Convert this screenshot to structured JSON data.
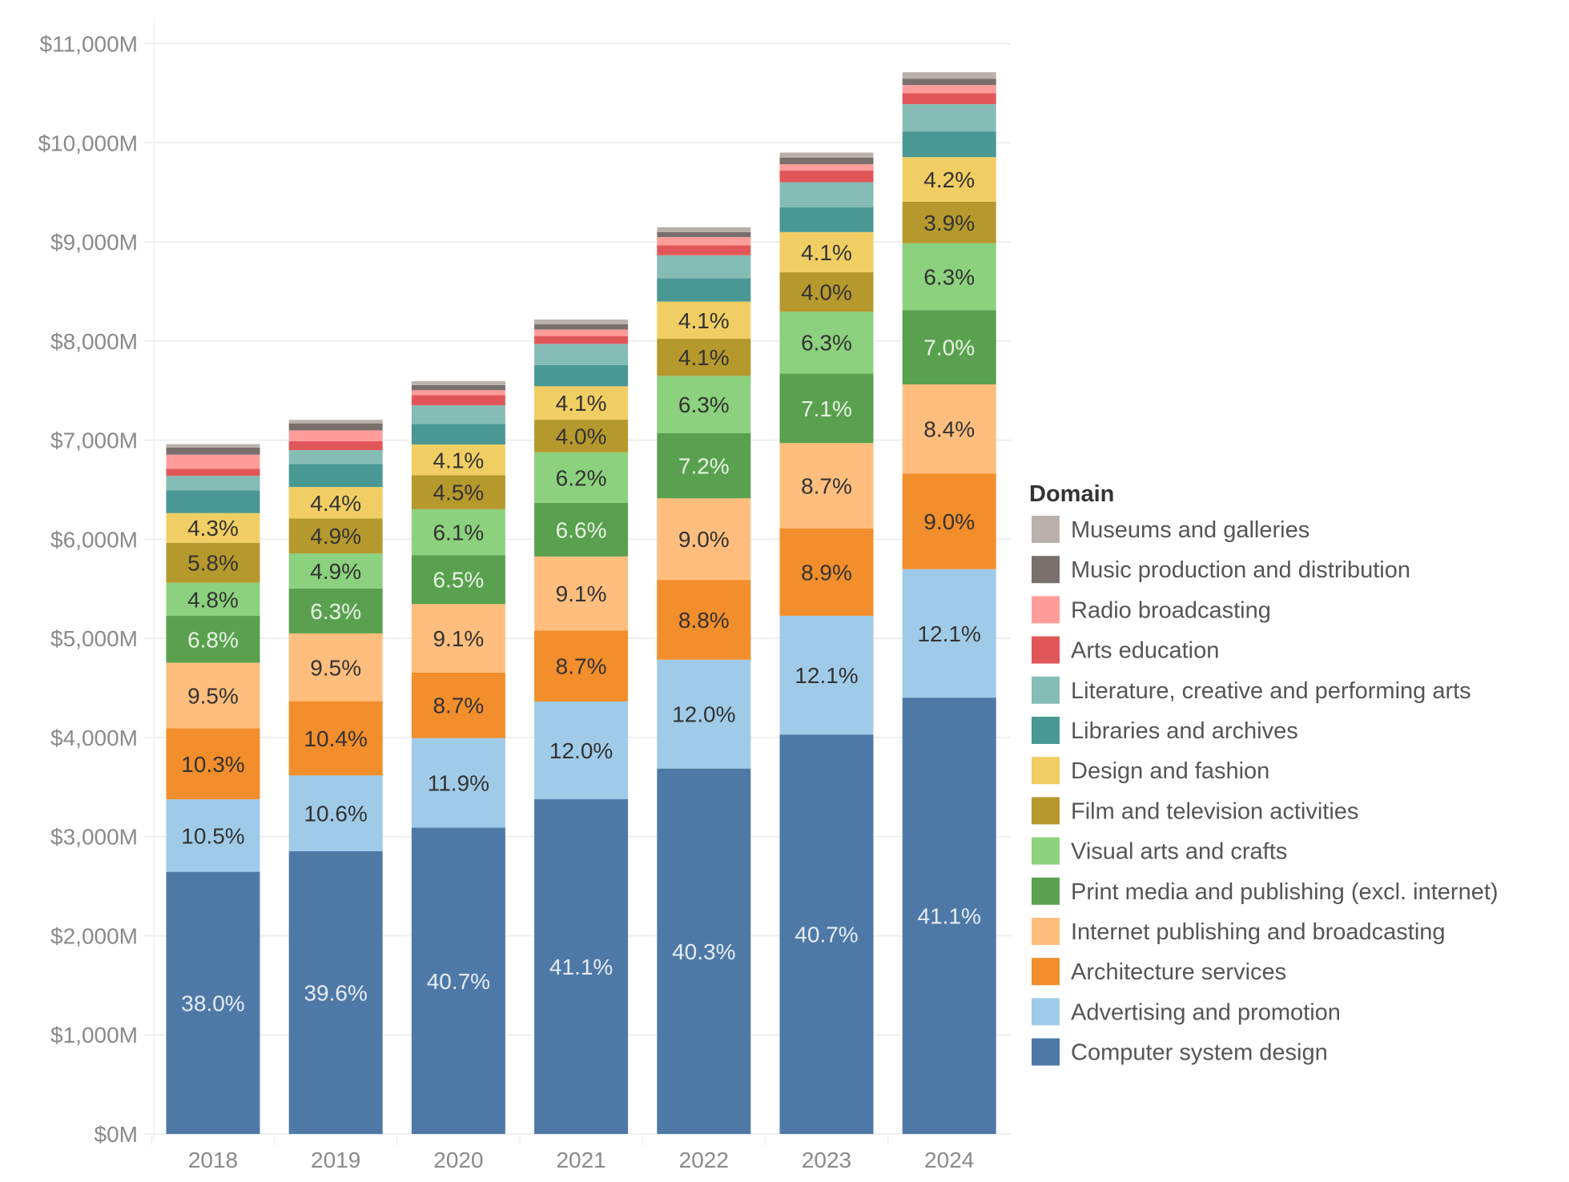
{
  "chart_data": {
    "type": "bar",
    "stacked": true,
    "categories": [
      "2018",
      "2019",
      "2020",
      "2021",
      "2022",
      "2023",
      "2024"
    ],
    "ylim": [
      0,
      11000
    ],
    "yticks": [
      0,
      1000,
      2000,
      3000,
      4000,
      5000,
      6000,
      7000,
      8000,
      9000,
      10000,
      11000
    ],
    "ytick_labels": [
      "$0M",
      "$1,000M",
      "$2,000M",
      "$3,000M",
      "$4,000M",
      "$5,000M",
      "$6,000M",
      "$7,000M",
      "$8,000M",
      "$9,000M",
      "$10,000M",
      "$11,000M"
    ],
    "grid": true,
    "legend": {
      "title": "Domain",
      "placement": "right"
    },
    "series": [
      {
        "name": "Computer system design",
        "color": "#4e79a7",
        "label_color": "#e6ecf5",
        "values": [
          2645,
          2853,
          3090,
          3377,
          3687,
          4030,
          4402
        ],
        "labels": [
          "38.0%",
          "39.6%",
          "40.7%",
          "41.1%",
          "40.3%",
          "40.7%",
          "41.1%"
        ]
      },
      {
        "name": "Advertising and promotion",
        "color": "#a0cbe8",
        "label_color": "#333333",
        "values": [
          731,
          764,
          904,
          986,
          1098,
          1198,
          1296
        ],
        "labels": [
          "10.5%",
          "10.6%",
          "11.9%",
          "12.0%",
          "12.0%",
          "12.1%",
          "12.1%"
        ]
      },
      {
        "name": "Architecture services",
        "color": "#f28e2b",
        "label_color": "#333333",
        "values": [
          717,
          749,
          661,
          715,
          805,
          881,
          964
        ],
        "labels": [
          "10.3%",
          "10.4%",
          "8.7%",
          "8.7%",
          "8.8%",
          "8.9%",
          "9.0%"
        ]
      },
      {
        "name": "Internet publishing and broadcasting",
        "color": "#ffbe7d",
        "label_color": "#333333",
        "values": [
          661,
          684,
          691,
          748,
          823,
          861,
          900
        ],
        "labels": [
          "9.5%",
          "9.5%",
          "9.1%",
          "9.1%",
          "9.0%",
          "8.7%",
          "8.4%"
        ]
      },
      {
        "name": "Print media and publishing (excl. internet)",
        "color": "#59a14f",
        "label_color": "#e8f2e4",
        "values": [
          473,
          454,
          494,
          542,
          659,
          703,
          750
        ],
        "labels": [
          "6.8%",
          "6.3%",
          "6.5%",
          "6.6%",
          "7.2%",
          "7.1%",
          "7.0%"
        ]
      },
      {
        "name": "Visual arts and crafts",
        "color": "#8cd17d",
        "label_color": "#333333",
        "values": [
          334,
          353,
          463,
          509,
          576,
          624,
          675
        ],
        "labels": [
          "4.8%",
          "4.9%",
          "6.1%",
          "6.2%",
          "6.3%",
          "6.3%",
          "6.3%"
        ]
      },
      {
        "name": "Film and television activities",
        "color": "#b6992d",
        "label_color": "#333333",
        "values": [
          404,
          353,
          342,
          329,
          375,
          396,
          418
        ],
        "labels": [
          "5.8%",
          "4.9%",
          "4.5%",
          "4.0%",
          "4.1%",
          "4.0%",
          "3.9%"
        ]
      },
      {
        "name": "Design and fashion",
        "color": "#f1ce63",
        "label_color": "#333333",
        "values": [
          299,
          317,
          311,
          337,
          375,
          406,
          450
        ],
        "labels": [
          "4.3%",
          "4.4%",
          "4.1%",
          "4.1%",
          "4.1%",
          "4.1%",
          "4.2%"
        ]
      },
      {
        "name": "Libraries and archives",
        "color": "#499894",
        "label_color": "#333333",
        "values": [
          230,
          231,
          208,
          214,
          234,
          251,
          259
        ],
        "labels": [
          null,
          null,
          null,
          null,
          null,
          null,
          null
        ]
      },
      {
        "name": "Literature, creative and performing arts",
        "color": "#86bcb6",
        "label_color": "#333333",
        "values": [
          145,
          141,
          187,
          214,
          233,
          252,
          275
        ],
        "labels": [
          null,
          null,
          null,
          null,
          null,
          null,
          null
        ]
      },
      {
        "name": "Arts education",
        "color": "#e15759",
        "label_color": "#333333",
        "values": [
          72,
          90,
          102,
          79,
          99,
          117,
          112
        ],
        "labels": [
          null,
          null,
          null,
          null,
          null,
          null,
          null
        ]
      },
      {
        "name": "Radio broadcasting",
        "color": "#ff9d9a",
        "label_color": "#333333",
        "values": [
          142,
          109,
          50,
          66,
          84,
          64,
          81
        ],
        "labels": [
          null,
          null,
          null,
          null,
          null,
          null,
          null
        ]
      },
      {
        "name": "Music production and distribution",
        "color": "#79706e",
        "label_color": "#333333",
        "values": [
          72,
          71,
          52,
          53,
          51,
          67,
          65
        ],
        "labels": [
          null,
          null,
          null,
          null,
          null,
          null,
          null
        ]
      },
      {
        "name": "Museums and galleries",
        "color": "#bab0ac",
        "label_color": "#333333",
        "values": [
          35,
          35,
          39,
          48,
          49,
          51,
          65
        ],
        "labels": [
          null,
          null,
          null,
          null,
          null,
          null,
          null
        ]
      }
    ]
  }
}
